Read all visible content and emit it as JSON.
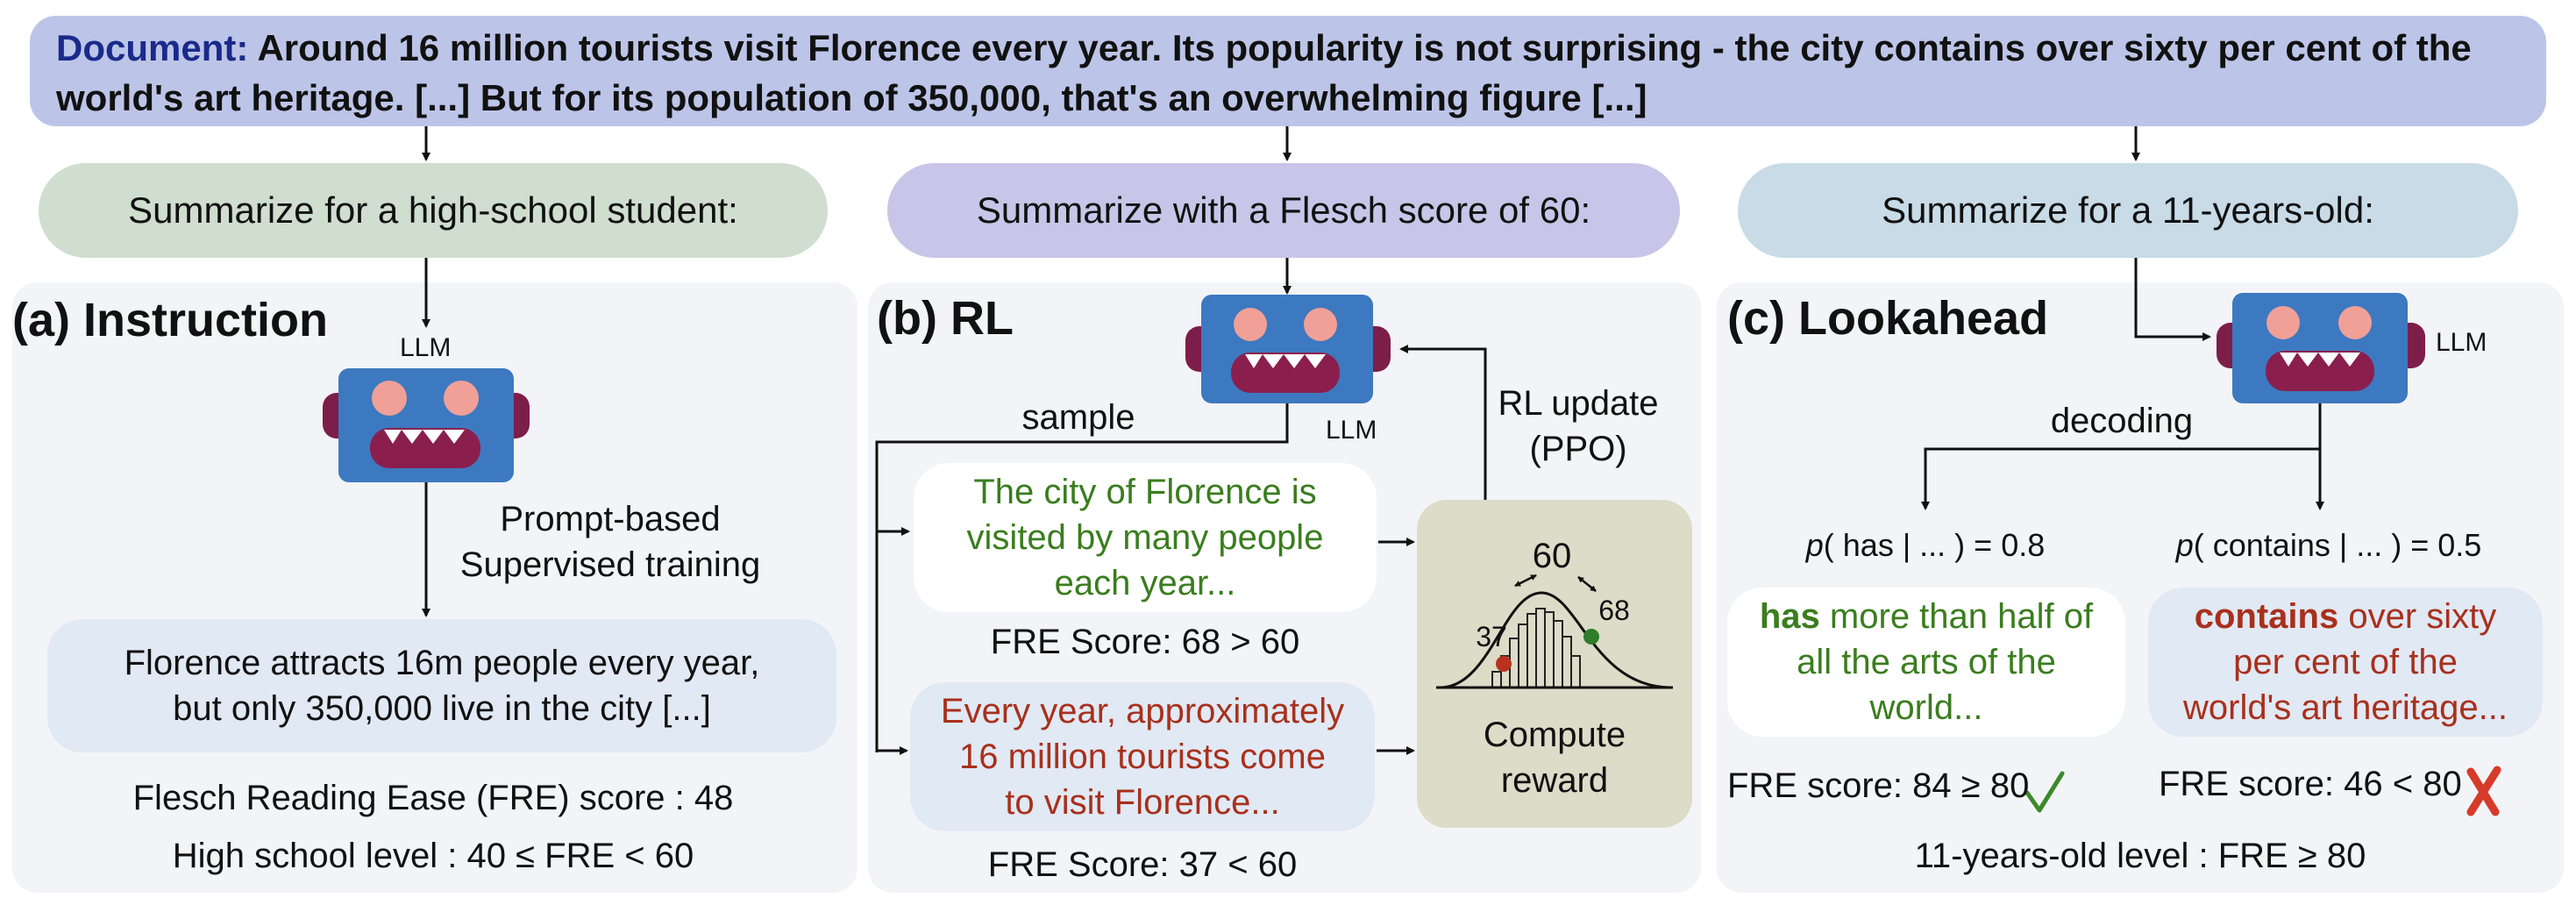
{
  "document": {
    "label": "Document:",
    "text": "Around 16 million tourists visit Florence every year. Its popularity is not surprising - the city contains over sixty per cent of the world's art heritage. [...] But for its population of 350,000, that's an overwhelming figure [...]"
  },
  "prompts": {
    "a": "Summarize for a high-school student:",
    "b": "Summarize with a Flesch score of 60:",
    "c": "Summarize for a 11-years-old:"
  },
  "panel_a": {
    "title": "(a) Instruction",
    "llm_label": "LLM",
    "training_line1": "Prompt-based",
    "training_line2": "Supervised training",
    "summary_line1": "Florence attracts 16m people every year,",
    "summary_line2": "but only 350,000 live in the city [...]",
    "score_text": "Flesch Reading Ease (FRE) score : 48",
    "level_text": "High school level : 40 ≤ FRE < 60"
  },
  "panel_b": {
    "title": "(b) RL",
    "llm_label": "LLM",
    "sample_label": "sample",
    "update_line1": "RL update",
    "update_line2": "(PPO)",
    "sample1_line1": "The city of Florence is",
    "sample1_line2": "visited by many people",
    "sample1_line3": "each year...",
    "sample1_score": "FRE Score: 68 > 60",
    "sample2_line1": "Every year, approximately",
    "sample2_line2": "16 million tourists come",
    "sample2_line3": "to visit Florence...",
    "sample2_score": "FRE Score: 37 < 60",
    "reward_line1": "Compute",
    "reward_line2": "reward",
    "dist_target": "60",
    "dist_low": "37",
    "dist_high": "68"
  },
  "panel_c": {
    "title": "(c) Lookahead",
    "llm_label": "LLM",
    "decoding_label": "decoding",
    "prob1_p": "p",
    "prob1_rest": "( has | ... ) = 0.8",
    "prob2_p": "p",
    "prob2_rest": "( contains | ... ) = 0.5",
    "cand1_bold": "has",
    "cand1_line1_rest": " more than half of",
    "cand1_line2": "all the arts of the",
    "cand1_line3": "world...",
    "cand2_bold": "contains",
    "cand2_line1_rest": " over sixty",
    "cand2_line2": "per cent of the",
    "cand2_line3": "world's art heritage...",
    "cand1_score": "FRE score: 84 ≥ 80",
    "cand2_score": "FRE score: 46 < 80",
    "level_text": "11-years-old level : FRE ≥ 80"
  },
  "colors": {
    "robot_body": "#3d79c0",
    "robot_ear": "#7d1d4a",
    "robot_eye": "#f0a097",
    "robot_mouth": "#8a1f4e",
    "prompt_a": "#cfdece",
    "prompt_b": "#c9c5e8",
    "prompt_c": "#c8dbe7",
    "reward_box": "#dcdcc8",
    "good_text": "#3a7d1e",
    "bad_text": "#a8301c"
  }
}
